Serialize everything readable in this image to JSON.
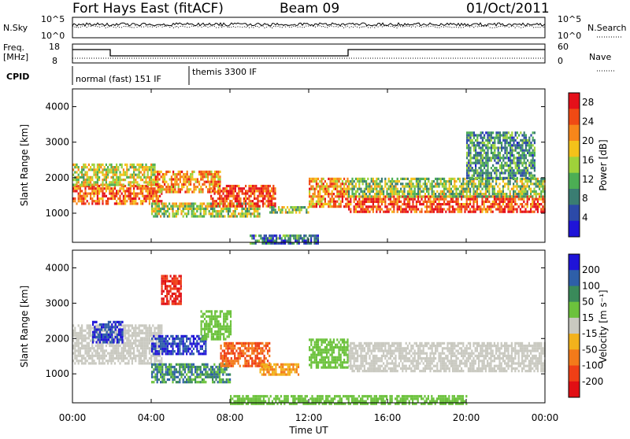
{
  "header": {
    "station": "Fort Hays East (fitACF)",
    "beam": "Beam 09",
    "date": "01/Oct/2011"
  },
  "mini_panels": {
    "nsky_label": "N.Sky",
    "nsearch_label": "N.Search",
    "nsky_ticks": [
      "10^5",
      "10^0"
    ],
    "nsearch_ticks": [
      "10^5",
      "10^0"
    ],
    "freq_label_1": "Freq.",
    "freq_label_2": "[MHz]",
    "freq_ticks": [
      "18",
      "8"
    ],
    "nave_label": "Nave",
    "nave_ticks": [
      "60",
      "0"
    ],
    "cpid_label": "CPID",
    "cpid_segments": [
      {
        "label": "normal (fast) 151 IF",
        "start_hour": 0,
        "end_hour": 6
      },
      {
        "label": "themis 3300 IF",
        "start_hour": 6,
        "end_hour": 24
      }
    ]
  },
  "chart_data": [
    {
      "type": "heatmap",
      "panel": "power",
      "ylabel": "Slant Range [km]",
      "xlabel": "",
      "x_ticks": [
        "00:00",
        "04:00",
        "08:00",
        "12:00",
        "16:00",
        "20:00",
        "00:00"
      ],
      "xlim_hours": [
        0,
        24
      ],
      "ylim_km": [
        180,
        4500
      ],
      "y_ticks": [
        1000,
        2000,
        3000,
        4000
      ],
      "colorbar": {
        "label": "Power [dB]",
        "ticks": [
          4,
          8,
          12,
          16,
          20,
          24,
          28
        ],
        "range": [
          0,
          30
        ],
        "colors": [
          "#1f14d8",
          "#2c4aa8",
          "#3a7d72",
          "#4cae54",
          "#9fd23a",
          "#f4c21a",
          "#f7861a",
          "#f04a14",
          "#e5101a"
        ]
      },
      "echo_regions": [
        {
          "t0": 0.0,
          "t1": 4.5,
          "r0": 1300,
          "r1": 1800,
          "level": 0.85
        },
        {
          "t0": 0.0,
          "t1": 4.2,
          "r0": 1800,
          "r1": 2400,
          "level": 0.55
        },
        {
          "t0": 4.2,
          "t1": 7.5,
          "r0": 1600,
          "r1": 2200,
          "level": 0.75
        },
        {
          "t0": 4.0,
          "t1": 9.5,
          "r0": 900,
          "r1": 1300,
          "level": 0.5
        },
        {
          "t0": 7.0,
          "t1": 10.3,
          "r0": 1200,
          "r1": 1800,
          "level": 0.9
        },
        {
          "t0": 10.0,
          "t1": 12.0,
          "r0": 1000,
          "r1": 1200,
          "level": 0.45
        },
        {
          "t0": 12.0,
          "t1": 14.0,
          "r0": 1200,
          "r1": 2000,
          "level": 0.75
        },
        {
          "t0": 14.0,
          "t1": 24.0,
          "r0": 1050,
          "r1": 1500,
          "level": 0.9
        },
        {
          "t0": 14.0,
          "t1": 24.0,
          "r0": 1500,
          "r1": 2000,
          "level": 0.45
        },
        {
          "t0": 20.0,
          "t1": 23.5,
          "r0": 2000,
          "r1": 3300,
          "level": 0.3
        },
        {
          "t0": 9.0,
          "t1": 12.5,
          "r0": 180,
          "r1": 400,
          "level": 0.2
        }
      ]
    },
    {
      "type": "heatmap",
      "panel": "velocity",
      "ylabel": "Slant Range [km]",
      "xlabel": "Time UT",
      "x_ticks": [
        "00:00",
        "04:00",
        "08:00",
        "12:00",
        "16:00",
        "20:00",
        "00:00"
      ],
      "xlim_hours": [
        0,
        24
      ],
      "ylim_km": [
        180,
        4500
      ],
      "y_ticks": [
        1000,
        2000,
        3000,
        4000
      ],
      "colorbar": {
        "label": "Velocity [m s⁻¹]",
        "ticks": [
          "200",
          "100",
          "50",
          "15",
          "-15",
          "-50",
          "-100",
          "-200"
        ],
        "colors": [
          "#1f14d8",
          "#2e5fa8",
          "#3a8a5a",
          "#6cc23c",
          "#c9c9c0",
          "#f2b21c",
          "#f37a1a",
          "#ef3f16",
          "#e10e14"
        ]
      },
      "echo_regions": [
        {
          "t0": 0.0,
          "t1": 4.5,
          "r0": 1300,
          "r1": 2400,
          "level": "ground"
        },
        {
          "t0": 14.0,
          "t1": 24.0,
          "r0": 1100,
          "r1": 1900,
          "level": "ground"
        },
        {
          "t0": 1.0,
          "t1": 2.5,
          "r0": 1900,
          "r1": 2500,
          "level": "toward_fast"
        },
        {
          "t0": 4.0,
          "t1": 6.8,
          "r0": 1600,
          "r1": 2100,
          "level": "toward_fast"
        },
        {
          "t0": 4.0,
          "t1": 8.0,
          "r0": 800,
          "r1": 1300,
          "level": "toward_mid"
        },
        {
          "t0": 7.5,
          "t1": 10.0,
          "r0": 1200,
          "r1": 1900,
          "level": "away_mid"
        },
        {
          "t0": 9.5,
          "t1": 11.5,
          "r0": 1000,
          "r1": 1300,
          "level": "away_slow"
        },
        {
          "t0": 12.0,
          "t1": 14.0,
          "r0": 1200,
          "r1": 2000,
          "level": "toward_slow"
        },
        {
          "t0": 4.5,
          "t1": 5.5,
          "r0": 3000,
          "r1": 3800,
          "level": "away_fast"
        },
        {
          "t0": 6.5,
          "t1": 8.0,
          "r0": 2000,
          "r1": 2800,
          "level": "toward_slow"
        },
        {
          "t0": 8.0,
          "t1": 20.0,
          "r0": 180,
          "r1": 400,
          "level": "toward_slow"
        }
      ]
    }
  ]
}
